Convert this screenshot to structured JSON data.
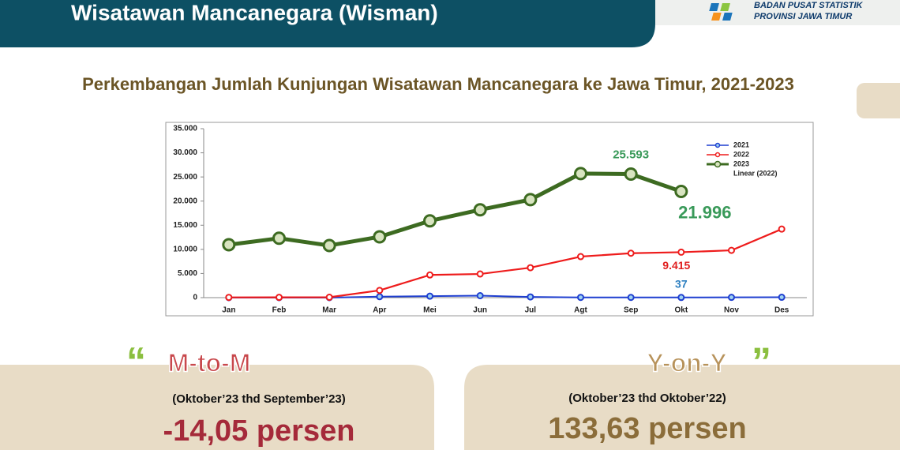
{
  "header": {
    "title": "Wisatawan Mancanegara (Wisman)",
    "org_line1": "BADAN PUSAT STATISTIK",
    "org_line2": "PROVINSI JAWA TIMUR"
  },
  "chart_data": {
    "type": "line",
    "title": "Perkembangan Jumlah Kunjungan Wisatawan Mancanegara ke Jawa Timur, 2021-2023",
    "categories": [
      "Jan",
      "Feb",
      "Mar",
      "Apr",
      "Mei",
      "Jun",
      "Jul",
      "Agt",
      "Sep",
      "Okt",
      "Nov",
      "Des"
    ],
    "series": [
      {
        "name": "2021",
        "color": "#1f3fd0",
        "values": [
          10,
          5,
          10,
          200,
          300,
          400,
          150,
          50,
          40,
          37,
          60,
          80
        ],
        "value_labels": [
          null,
          null,
          null,
          null,
          null,
          null,
          null,
          null,
          null,
          "37",
          null,
          null
        ]
      },
      {
        "name": "2022",
        "color": "#ee1c1c",
        "values": [
          50,
          60,
          80,
          1500,
          4700,
          4900,
          6200,
          8500,
          9200,
          9415,
          9800,
          14200
        ],
        "value_labels": [
          null,
          null,
          null,
          null,
          null,
          null,
          null,
          null,
          null,
          "9.415",
          null,
          null
        ]
      },
      {
        "name": "2023",
        "color": "#3d6b21",
        "values": [
          10960,
          12300,
          10800,
          12600,
          15900,
          18200,
          20300,
          25700,
          25593,
          21996,
          null,
          null
        ],
        "value_labels": [
          null,
          null,
          null,
          null,
          null,
          null,
          null,
          null,
          "25.593",
          "21.996",
          null,
          null
        ]
      }
    ],
    "trendline_label": "Linear (2022)",
    "ylim": [
      0,
      35000
    ],
    "yticks": [
      0,
      {
        "value": 5000,
        "label": "5.000"
      },
      {
        "value": 10000,
        "label": "10.000"
      },
      {
        "value": 15000,
        "label": "15.000"
      },
      {
        "value": 20000,
        "label": "20.000"
      },
      {
        "value": 25000,
        "label": "25.000"
      },
      {
        "value": 30000,
        "label": "30.000"
      },
      {
        "value": 35000,
        "label": "35.000"
      }
    ],
    "grid": false,
    "legend": "upper right"
  },
  "mtom": {
    "quote": "“",
    "label": "M-to-M",
    "period": "(Oktober’23 thd September’23)",
    "result": "-14,05 persen"
  },
  "yoy": {
    "quote": "”",
    "label": "Y-on-Y",
    "period": "(Oktober’23 thd Oktober’22)",
    "result": "133,63 persen"
  }
}
